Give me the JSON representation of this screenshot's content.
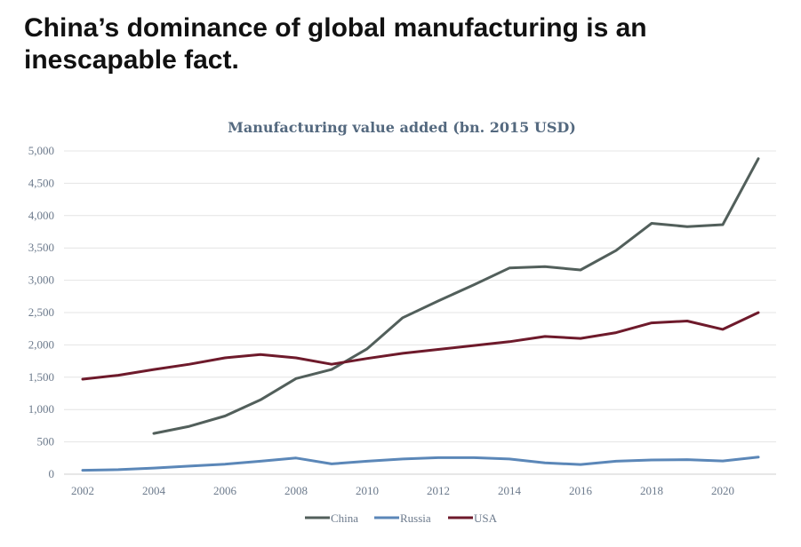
{
  "headline": "China’s dominance of global manufacturing is an inescapable fact.",
  "chart_data": {
    "type": "line",
    "title": "Manufacturing value added (bn. 2015 USD)",
    "xlabel": "",
    "ylabel": "",
    "x": [
      2002,
      2003,
      2004,
      2005,
      2006,
      2007,
      2008,
      2009,
      2010,
      2011,
      2012,
      2013,
      2014,
      2015,
      2016,
      2017,
      2018,
      2019,
      2020,
      2021
    ],
    "xticks": [
      2002,
      2004,
      2006,
      2008,
      2010,
      2012,
      2014,
      2016,
      2018,
      2020
    ],
    "xtick_labels": [
      "2002",
      "2004",
      "2006",
      "2008",
      "2010",
      "2012",
      "2014",
      "2016",
      "2018",
      "2020"
    ],
    "xlim": [
      2002,
      2021.5
    ],
    "yticks": [
      0,
      500,
      1000,
      1500,
      2000,
      2500,
      3000,
      3500,
      4000,
      4500,
      5000
    ],
    "ytick_labels": [
      "0",
      "500",
      "1,000",
      "1,500",
      "2,000",
      "2,500",
      "3,000",
      "3,500",
      "4,000",
      "4,500",
      "5,000"
    ],
    "ylim": [
      0,
      5000
    ],
    "grid": true,
    "legend_position": "bottom-center",
    "series": [
      {
        "name": "China",
        "color": "#525f5b",
        "values": [
          null,
          null,
          630,
          740,
          900,
          1150,
          1480,
          1620,
          1940,
          2420,
          2680,
          2930,
          3190,
          3210,
          3160,
          3460,
          3880,
          3830,
          3860,
          4880
        ]
      },
      {
        "name": "Russia",
        "color": "#5b87b8",
        "values": [
          60,
          70,
          95,
          125,
          155,
          200,
          250,
          160,
          200,
          235,
          255,
          255,
          235,
          175,
          150,
          200,
          220,
          225,
          205,
          265
        ]
      },
      {
        "name": "USA",
        "color": "#6e1a2b",
        "values": [
          1470,
          1530,
          1620,
          1700,
          1800,
          1850,
          1800,
          1700,
          1790,
          1870,
          1930,
          1990,
          2050,
          2130,
          2100,
          2190,
          2340,
          2370,
          2240,
          2500
        ]
      }
    ]
  }
}
